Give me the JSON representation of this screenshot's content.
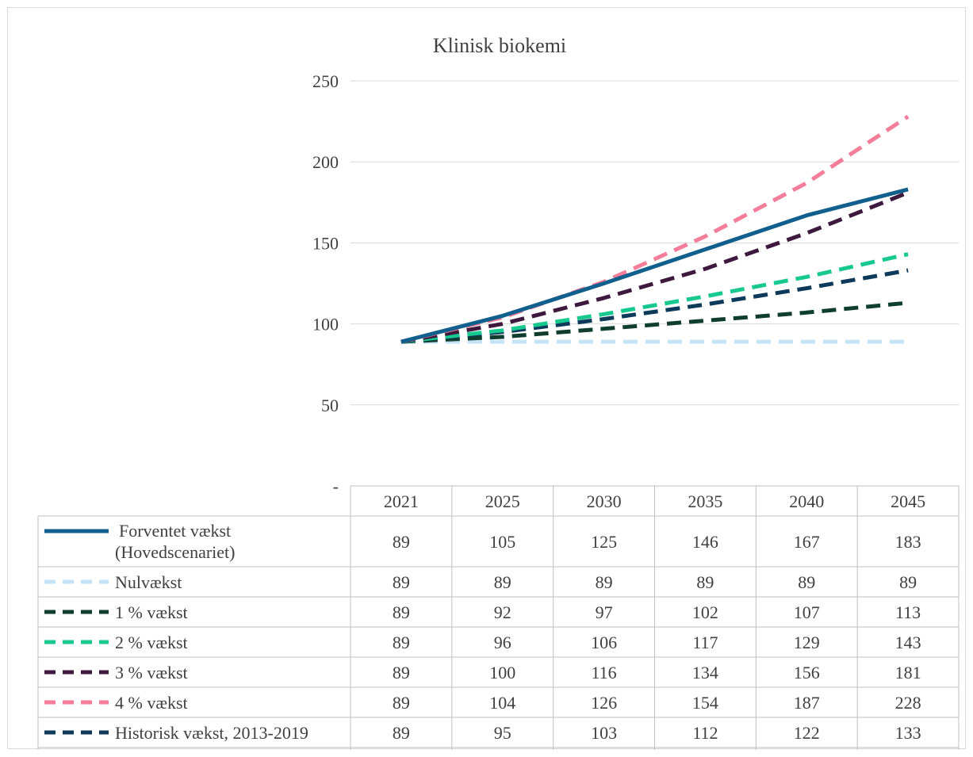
{
  "chart_data": {
    "type": "line",
    "title": "Klinisk biokemi",
    "categories": [
      "2021",
      "2025",
      "2030",
      "2035",
      "2040",
      "2045"
    ],
    "y_ticks": [
      "-",
      "50",
      "100",
      "150",
      "200",
      "250"
    ],
    "ylim": [
      0,
      250
    ],
    "grid": true,
    "legend_placement": "data-table",
    "series": [
      {
        "name": "Forventet vækst (Hovedscenariet)",
        "label_lines": [
          "Forventet vækst",
          "(Hovedscenariet)"
        ],
        "values": [
          89,
          105,
          125,
          146,
          167,
          183
        ],
        "color": "#115f8c",
        "dash": "solid"
      },
      {
        "name": "Nulvækst",
        "label_lines": [
          "Nulvækst"
        ],
        "values": [
          89,
          89,
          89,
          89,
          89,
          89
        ],
        "color": "#c5e3f7",
        "dash": "dashed"
      },
      {
        "name": "1 % vækst",
        "label_lines": [
          "1 % vækst"
        ],
        "values": [
          89,
          92,
          97,
          102,
          107,
          113
        ],
        "color": "#0f3d2e",
        "dash": "dashed"
      },
      {
        "name": "2 % vækst",
        "label_lines": [
          "2 % vækst"
        ],
        "values": [
          89,
          96,
          106,
          117,
          129,
          143
        ],
        "color": "#18c98f",
        "dash": "dashed"
      },
      {
        "name": "3 % vækst",
        "label_lines": [
          "3 % vækst"
        ],
        "values": [
          89,
          100,
          116,
          134,
          156,
          181
        ],
        "color": "#3d1a3d",
        "dash": "dashed"
      },
      {
        "name": "4 % vækst",
        "label_lines": [
          "4 % vækst"
        ],
        "values": [
          89,
          104,
          126,
          154,
          187,
          228
        ],
        "color": "#f47d99",
        "dash": "dashed"
      },
      {
        "name": "Historisk vækst, 2013-2019",
        "label_lines": [
          "Historisk vækst, 2013-2019"
        ],
        "values": [
          89,
          95,
          103,
          112,
          122,
          133
        ],
        "color": "#0d3a5a",
        "dash": "dashed"
      }
    ]
  }
}
